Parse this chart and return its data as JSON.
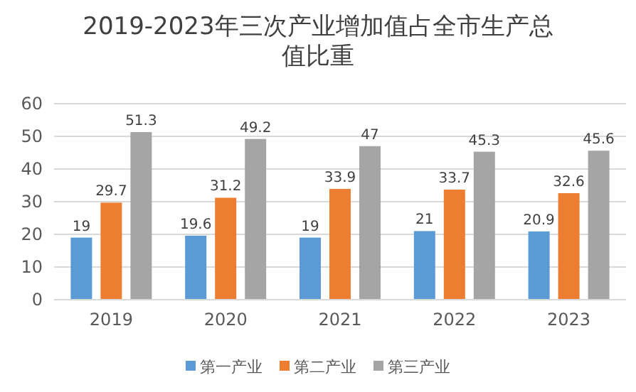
{
  "chart_data": {
    "type": "bar",
    "title": "2019-2023年三次产业增加值占全市生产总值比重",
    "categories": [
      "2019",
      "2020",
      "2021",
      "2022",
      "2023"
    ],
    "series": [
      {
        "name": "第一产业",
        "color": "#5b9bd5",
        "values": [
          19,
          19.6,
          19,
          21,
          20.9
        ]
      },
      {
        "name": "第二产业",
        "color": "#ed7d31",
        "values": [
          29.7,
          31.2,
          33.9,
          33.7,
          32.6
        ]
      },
      {
        "name": "第三产业",
        "color": "#a5a5a5",
        "values": [
          51.3,
          49.2,
          47,
          45.3,
          45.6
        ]
      }
    ],
    "ylim": [
      0,
      60
    ],
    "yticks": [
      0,
      10,
      20,
      30,
      40,
      50,
      60
    ],
    "grid": "y",
    "legend": "bottom",
    "data_labels": true
  }
}
